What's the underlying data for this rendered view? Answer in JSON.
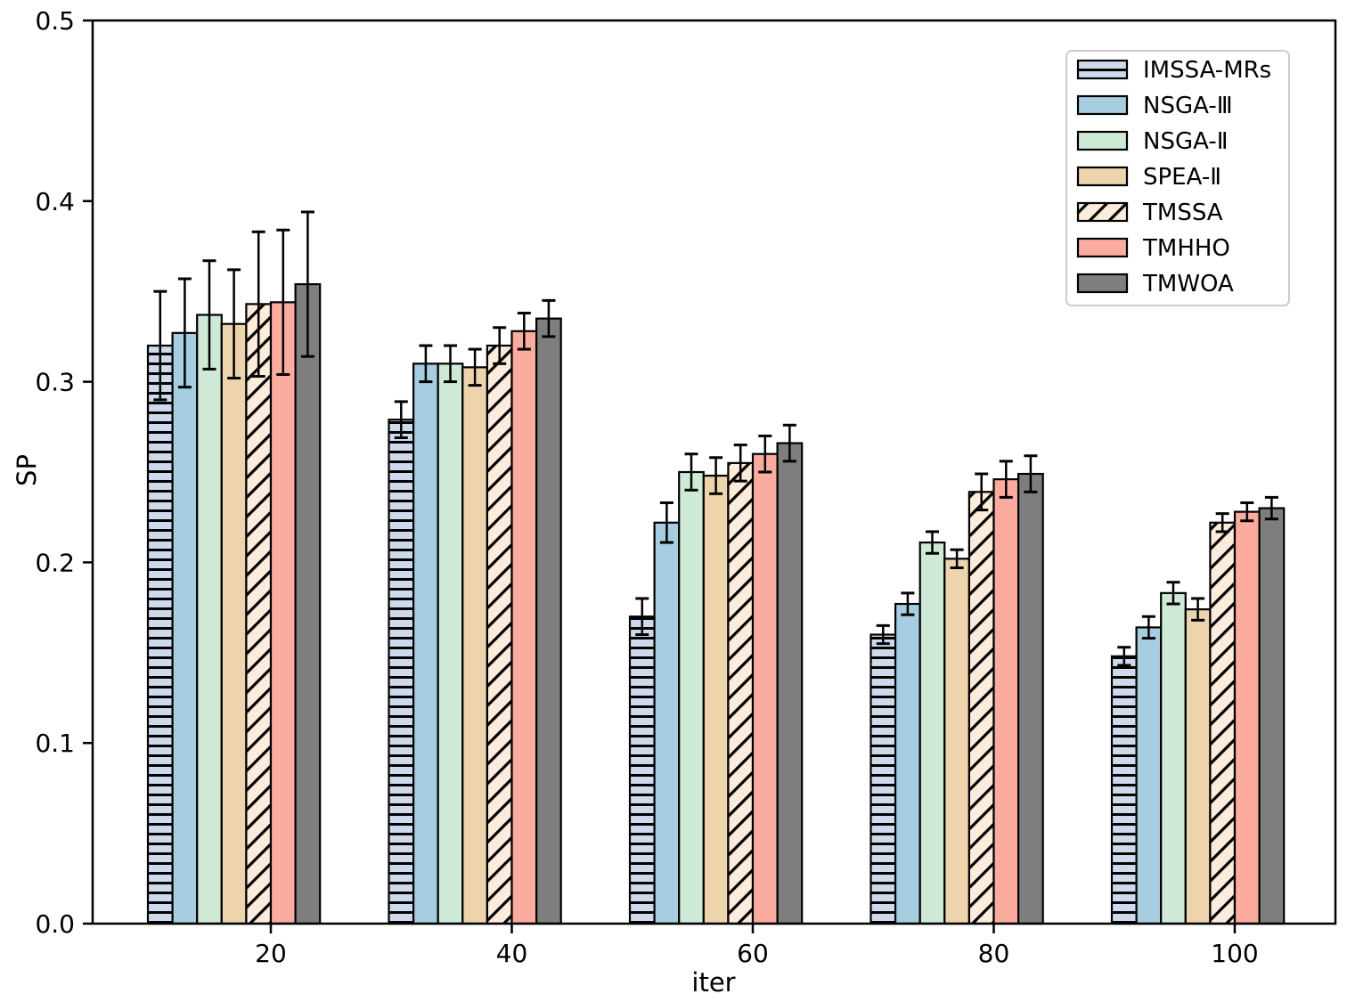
{
  "chart_data": {
    "type": "bar",
    "title": "",
    "xlabel": "iter",
    "ylabel": "SP",
    "categories": [
      "20",
      "40",
      "60",
      "80",
      "100"
    ],
    "ylim": [
      0.0,
      0.5
    ],
    "ytick_labels": [
      "0.0",
      "0.1",
      "0.2",
      "0.3",
      "0.4",
      "0.5"
    ],
    "grid": false,
    "legend_position": "upper right",
    "error_bars": true,
    "colors": {
      "bar_edge": "#000000",
      "error_bar": "#000000",
      "hatch_line": "#000000",
      "legend_border": "#cccccc",
      "legend_background": "#ffffff",
      "axis": "#000000",
      "background": "#ffffff"
    },
    "series": [
      {
        "name": "IMSSA-MRs",
        "color": "#cfd9ec",
        "hatch": "horizontal-lines",
        "values": [
          0.32,
          0.279,
          0.17,
          0.16,
          0.148
        ],
        "errors": [
          0.03,
          0.01,
          0.01,
          0.005,
          0.005
        ]
      },
      {
        "name": "NSGA-Ⅲ",
        "color": "#a6cde0",
        "hatch": "none",
        "values": [
          0.327,
          0.31,
          0.222,
          0.177,
          0.164
        ],
        "errors": [
          0.03,
          0.01,
          0.011,
          0.006,
          0.006
        ]
      },
      {
        "name": "NSGA-Ⅱ",
        "color": "#cfe9d7",
        "hatch": "none",
        "values": [
          0.337,
          0.31,
          0.25,
          0.211,
          0.183
        ],
        "errors": [
          0.03,
          0.01,
          0.01,
          0.006,
          0.006
        ]
      },
      {
        "name": "SPEA-Ⅱ",
        "color": "#eed4ad",
        "hatch": "none",
        "values": [
          0.332,
          0.308,
          0.248,
          0.202,
          0.174
        ],
        "errors": [
          0.03,
          0.01,
          0.01,
          0.005,
          0.006
        ]
      },
      {
        "name": "TMSSA",
        "color": "#fdebdc",
        "hatch": "diagonal",
        "values": [
          0.343,
          0.32,
          0.255,
          0.239,
          0.222
        ],
        "errors": [
          0.04,
          0.01,
          0.01,
          0.01,
          0.005
        ]
      },
      {
        "name": "TMHHO",
        "color": "#fcab9f",
        "hatch": "none",
        "values": [
          0.344,
          0.328,
          0.26,
          0.246,
          0.228
        ],
        "errors": [
          0.04,
          0.01,
          0.01,
          0.01,
          0.005
        ]
      },
      {
        "name": "TMWOA",
        "color": "#7e7e7e",
        "hatch": "none",
        "values": [
          0.354,
          0.335,
          0.266,
          0.249,
          0.23
        ],
        "errors": [
          0.04,
          0.01,
          0.01,
          0.01,
          0.006
        ]
      }
    ]
  }
}
